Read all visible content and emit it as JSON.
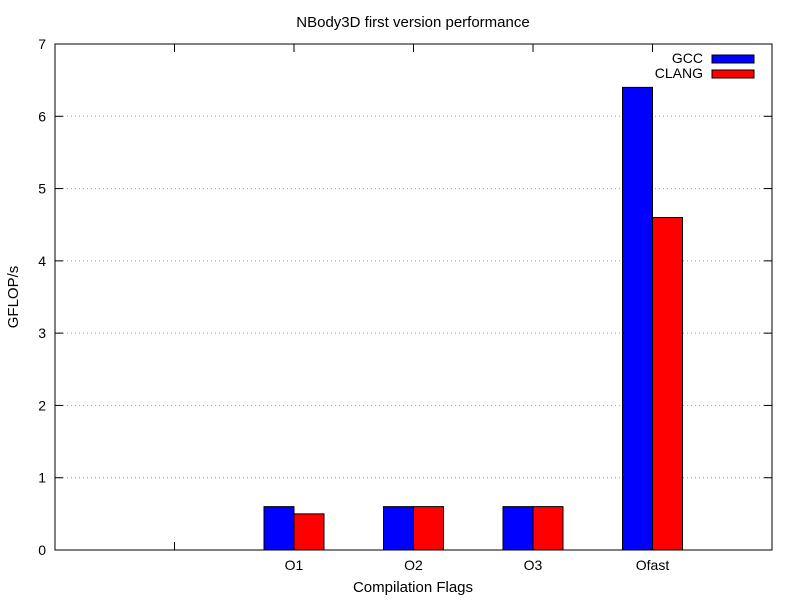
{
  "chart_data": {
    "type": "bar",
    "title": "NBody3D first version performance",
    "xlabel": "Compilation Flags",
    "ylabel": "GFLOP/s",
    "categories": [
      "",
      "O1",
      "O2",
      "O3",
      "Ofast"
    ],
    "series": [
      {
        "name": "GCC",
        "color": "#0000ff",
        "values": [
          null,
          0.6,
          0.6,
          0.6,
          6.4
        ]
      },
      {
        "name": "CLANG",
        "color": "#ff0000",
        "values": [
          null,
          0.5,
          0.6,
          0.6,
          4.6
        ]
      }
    ],
    "ylim": [
      0,
      7
    ],
    "yticks": [
      0,
      1,
      2,
      3,
      4,
      5,
      6,
      7
    ],
    "grid": "horizontal-dotted",
    "legend_position": "top-right"
  }
}
